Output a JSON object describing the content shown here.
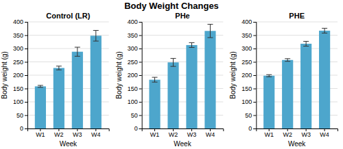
{
  "title": "Body Weight Changes",
  "chart_data": [
    {
      "type": "bar",
      "title": "Control (LR)",
      "categories": [
        "W1",
        "W2",
        "W3",
        "W4"
      ],
      "values": [
        158,
        227,
        288,
        348
      ],
      "errors": [
        3.7,
        7,
        17,
        20
      ],
      "xlabel": "Week",
      "ylabel": "Body weight (g)",
      "color": "#4da6cc",
      "ylim": [
        0,
        400
      ],
      "yticks": [
        0,
        50,
        100,
        150,
        200,
        250,
        300,
        350,
        400
      ],
      "grid": "y"
    },
    {
      "type": "bar",
      "title": "PHe",
      "categories": [
        "W1",
        "W2",
        "W3",
        "W4"
      ],
      "values": [
        183,
        248,
        313,
        366
      ],
      "errors": [
        9,
        15,
        9,
        25
      ],
      "xlabel": "Week",
      "ylabel": "Body weight (g)",
      "color": "#4da6cc",
      "ylim": [
        0,
        400
      ],
      "yticks": [
        0,
        50,
        100,
        150,
        200,
        250,
        300,
        350,
        400
      ],
      "grid": "y"
    },
    {
      "type": "bar",
      "title": "PHE",
      "categories": [
        "W1",
        "W2",
        "W3",
        "W4"
      ],
      "values": [
        198,
        257,
        318,
        367
      ],
      "errors": [
        4,
        5,
        9,
        9
      ],
      "xlabel": "Week",
      "ylabel": "Body weight (g)",
      "color": "#4da6cc",
      "ylim": [
        0,
        400
      ],
      "yticks": [
        0,
        50,
        100,
        150,
        200,
        250,
        300,
        350,
        400
      ],
      "grid": "y"
    }
  ]
}
